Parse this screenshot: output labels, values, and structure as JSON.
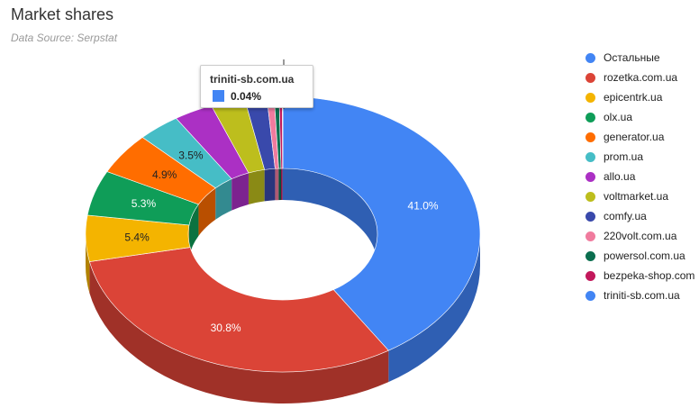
{
  "header": {
    "title": "Market shares",
    "subtitle": "Data Source: Serpstat"
  },
  "chart_data": {
    "type": "pie",
    "title": "Market shares",
    "subtitle": "Data Source: Serpstat",
    "legend_position": "right",
    "slices": [
      {
        "label": "Остальные",
        "value": 41.0,
        "display": "41.0%",
        "color": "#4285f4",
        "side": "#2f5fb3",
        "text_color": "#ffffff"
      },
      {
        "label": "rozetka.com.ua",
        "value": 30.8,
        "display": "30.8%",
        "color": "#db4437",
        "side": "#a03128",
        "text_color": "#ffffff"
      },
      {
        "label": "epicentrk.ua",
        "value": 5.4,
        "display": "5.4%",
        "color": "#f4b400",
        "side": "#b28300",
        "text_color": "#222222"
      },
      {
        "label": "olx.ua",
        "value": 5.3,
        "display": "5.3%",
        "color": "#0f9d58",
        "side": "#0b7240",
        "text_color": "#ffffff"
      },
      {
        "label": "generator.ua",
        "value": 4.9,
        "display": "4.9%",
        "color": "#ff6d00",
        "side": "#b94f00",
        "text_color": "#222222"
      },
      {
        "label": "prom.ua",
        "value": 3.5,
        "display": "3.5%",
        "color": "#46bdc6",
        "side": "#338a90",
        "text_color": "#222222"
      },
      {
        "label": "allo.ua",
        "value": 3.2,
        "display": "",
        "color": "#ab30c4",
        "side": "#7c238f",
        "text_color": "#ffffff"
      },
      {
        "label": "voltmarket.ua",
        "value": 2.8,
        "display": "",
        "color": "#bdbe1d",
        "side": "#8a8a15",
        "text_color": "#222222"
      },
      {
        "label": "comfy.ua",
        "value": 1.8,
        "display": "",
        "color": "#3949ab",
        "side": "#29357c",
        "text_color": "#ffffff"
      },
      {
        "label": "220volt.com.ua",
        "value": 0.6,
        "display": "",
        "color": "#f07b9e",
        "side": "#af5a73",
        "text_color": "#222222"
      },
      {
        "label": "powersol.com.ua",
        "value": 0.4,
        "display": "",
        "color": "#0b6e4f",
        "side": "#08503a",
        "text_color": "#ffffff"
      },
      {
        "label": "bezpeka-shop.com",
        "value": 0.26,
        "display": "",
        "color": "#c2185b",
        "side": "#8d1142",
        "text_color": "#ffffff"
      },
      {
        "label": "triniti-sb.com.ua",
        "value": 0.04,
        "display": "",
        "color": "#4285f4",
        "side": "#2f5fb3",
        "text_color": "#ffffff"
      }
    ]
  },
  "tooltip": {
    "label": "triniti-sb.com.ua",
    "value": "0.04%",
    "color": "#4285f4"
  }
}
